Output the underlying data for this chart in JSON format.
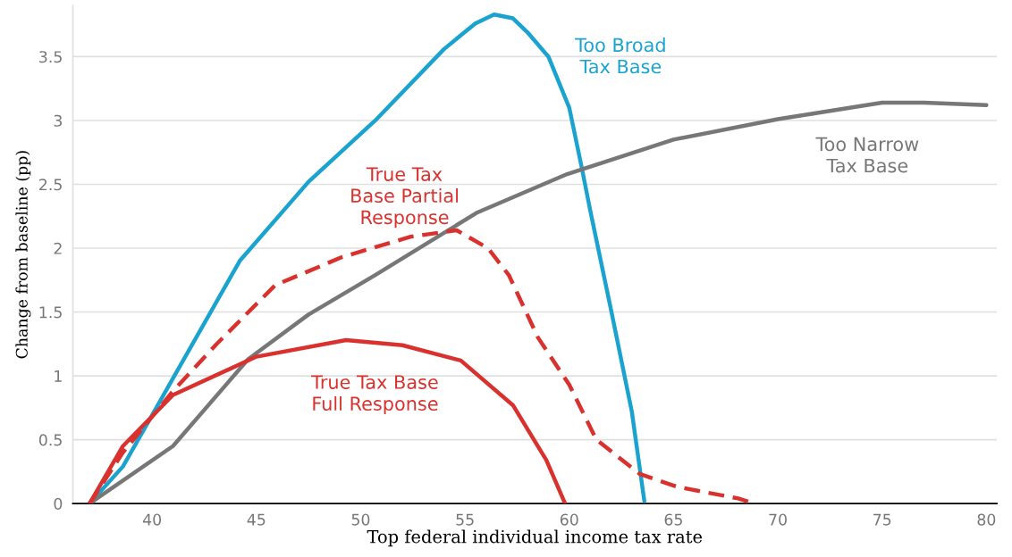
{
  "chart_data": {
    "type": "line",
    "xlabel": "Top federal individual income tax rate",
    "ylabel": "Change from baseline (pp)",
    "xlim": [
      36.2,
      80.5
    ],
    "ylim": [
      0,
      3.9
    ],
    "xticks": [
      40,
      45,
      50,
      55,
      60,
      65,
      70,
      75,
      80
    ],
    "yticks": [
      0,
      0.5,
      1,
      1.5,
      2,
      2.5,
      3,
      3.5
    ],
    "grid": "y",
    "series": [
      {
        "name": "Too Broad Tax Base",
        "color": "#1ba3d0",
        "line_style": "solid",
        "x": [
          37,
          38.6,
          41,
          44.2,
          47.5,
          50.7,
          54,
          55.5,
          56.4,
          57.3,
          58,
          59,
          60,
          60.6,
          61,
          62,
          63,
          63.6
        ],
        "values": [
          0,
          0.29,
          0.98,
          1.9,
          2.52,
          3.0,
          3.56,
          3.76,
          3.83,
          3.8,
          3.69,
          3.5,
          3.1,
          2.63,
          2.3,
          1.52,
          0.72,
          0.02
        ]
      },
      {
        "name": "Too Narrow Tax Base",
        "color": "#777777",
        "line_style": "solid",
        "x": [
          37,
          41,
          44.6,
          47.5,
          50.7,
          55.6,
          59.9,
          65,
          70,
          75,
          77,
          80
        ],
        "values": [
          0,
          0.45,
          1.13,
          1.48,
          1.79,
          2.28,
          2.58,
          2.85,
          3.01,
          3.14,
          3.14,
          3.12
        ]
      },
      {
        "name": "True Tax Base Partial Response",
        "color": "#d9322e",
        "line_style": "dashed",
        "x": [
          37,
          38.6,
          41,
          43.1,
          45.9,
          49.1,
          52.4,
          54.6,
          56.1,
          57.1,
          58.5,
          60,
          61.3,
          63.4,
          65.2,
          68.1,
          68.9
        ],
        "values": [
          0,
          0.4,
          0.88,
          1.25,
          1.71,
          1.93,
          2.09,
          2.14,
          2.0,
          1.79,
          1.3,
          0.93,
          0.5,
          0.23,
          0.13,
          0.04,
          0
        ]
      },
      {
        "name": "True Tax Base Full Response",
        "color": "#d9322e",
        "line_style": "solid",
        "x": [
          37,
          38.6,
          41,
          45,
          49.3,
          52,
          54.8,
          57.3,
          58.9,
          59.8
        ],
        "values": [
          0,
          0.45,
          0.85,
          1.15,
          1.28,
          1.24,
          1.12,
          0.77,
          0.34,
          0
        ]
      }
    ]
  }
}
